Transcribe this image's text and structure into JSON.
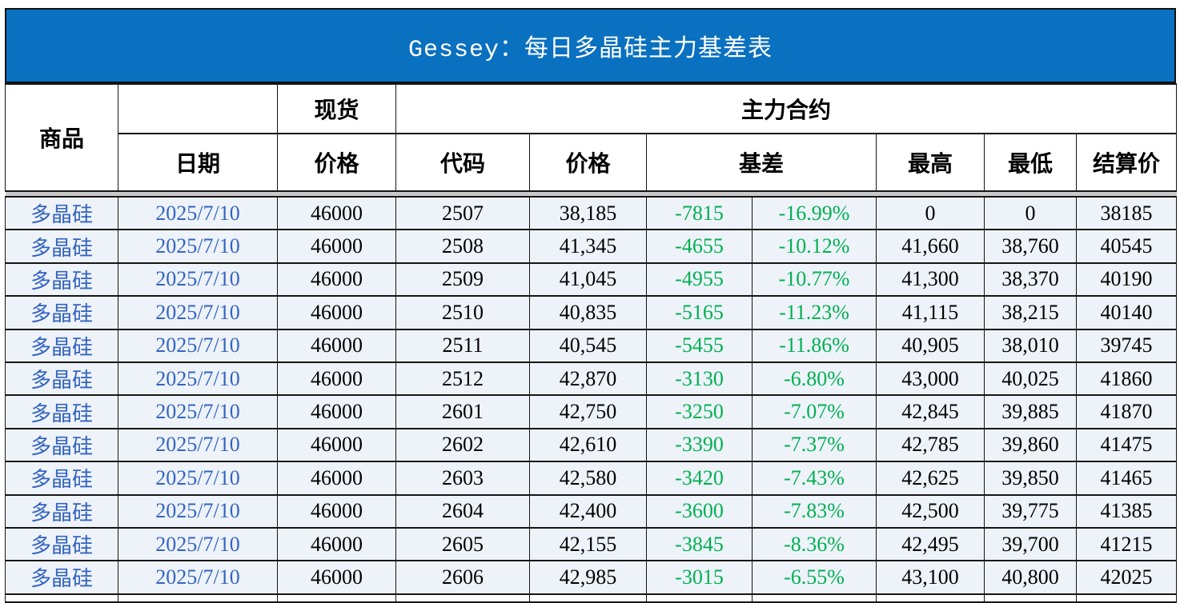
{
  "title": "Gessey：每日多晶硅主力基差表",
  "colors": {
    "title_bg": "#0a70c0",
    "group_header_bg": "#dce6f2",
    "data_row_bg": "#eef3fa",
    "basis_green": "#00b050",
    "commodity_blue": "#3464c0",
    "divider_gray": "#c9c9c9"
  },
  "chart_data": {
    "type": "table",
    "title": "Gessey：每日多晶硅主力基差表",
    "headers": {
      "commodity": "商品",
      "date": "日期",
      "spot_group": "现货",
      "main_group": "主力合约",
      "spot_price": "价格",
      "code": "代码",
      "price": "价格",
      "basis": "基差",
      "high": "最高",
      "low": "最低",
      "settle": "结算价"
    },
    "columns": [
      "商品",
      "日期",
      "现货价格",
      "主力合约代码",
      "主力合约价格",
      "基差",
      "基差%",
      "最高",
      "最低",
      "结算价"
    ],
    "rows": [
      [
        "多晶硅",
        "2025/7/10",
        "46000",
        "2507",
        "38,185",
        "-7815",
        "-16.99%",
        "0",
        "0",
        "38185"
      ],
      [
        "多晶硅",
        "2025/7/10",
        "46000",
        "2508",
        "41,345",
        "-4655",
        "-10.12%",
        "41,660",
        "38,760",
        "40545"
      ],
      [
        "多晶硅",
        "2025/7/10",
        "46000",
        "2509",
        "41,045",
        "-4955",
        "-10.77%",
        "41,300",
        "38,370",
        "40190"
      ],
      [
        "多晶硅",
        "2025/7/10",
        "46000",
        "2510",
        "40,835",
        "-5165",
        "-11.23%",
        "41,115",
        "38,215",
        "40140"
      ],
      [
        "多晶硅",
        "2025/7/10",
        "46000",
        "2511",
        "40,545",
        "-5455",
        "-11.86%",
        "40,905",
        "38,010",
        "39745"
      ],
      [
        "多晶硅",
        "2025/7/10",
        "46000",
        "2512",
        "42,870",
        "-3130",
        "-6.80%",
        "43,000",
        "40,025",
        "41860"
      ],
      [
        "多晶硅",
        "2025/7/10",
        "46000",
        "2601",
        "42,750",
        "-3250",
        "-7.07%",
        "42,845",
        "39,885",
        "41870"
      ],
      [
        "多晶硅",
        "2025/7/10",
        "46000",
        "2602",
        "42,610",
        "-3390",
        "-7.37%",
        "42,785",
        "39,860",
        "41475"
      ],
      [
        "多晶硅",
        "2025/7/10",
        "46000",
        "2603",
        "42,580",
        "-3420",
        "-7.43%",
        "42,625",
        "39,850",
        "41465"
      ],
      [
        "多晶硅",
        "2025/7/10",
        "46000",
        "2604",
        "42,400",
        "-3600",
        "-7.83%",
        "42,500",
        "39,775",
        "41385"
      ],
      [
        "多晶硅",
        "2025/7/10",
        "46000",
        "2605",
        "42,155",
        "-3845",
        "-8.36%",
        "42,495",
        "39,700",
        "41215"
      ],
      [
        "多晶硅",
        "2025/7/10",
        "46000",
        "2606",
        "42,985",
        "-3015",
        "-6.55%",
        "43,100",
        "40,800",
        "42025"
      ]
    ]
  }
}
